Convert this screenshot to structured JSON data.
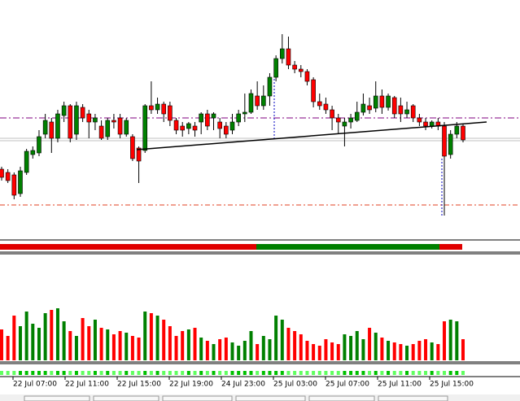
{
  "chart_data": {
    "type": "candlestick",
    "open": [
      92,
      88,
      85,
      62,
      88,
      110,
      112,
      135,
      150,
      130,
      158,
      170,
      135,
      168,
      160,
      150,
      145,
      132,
      152,
      155,
      135,
      132,
      118,
      115,
      170,
      165,
      172,
      170,
      152,
      145,
      142,
      145,
      150,
      160,
      155,
      150,
      145,
      140,
      150,
      160,
      162,
      182,
      170,
      182,
      205,
      228,
      240,
      220,
      215,
      212,
      202,
      175,
      172,
      165,
      155,
      145,
      150,
      152,
      162,
      170,
      167,
      182,
      168,
      180,
      170,
      160,
      170,
      155,
      150,
      145,
      150,
      145,
      110,
      135,
      145
    ],
    "close": [
      82,
      78,
      60,
      90,
      114,
      115,
      132,
      152,
      130,
      160,
      170,
      130,
      170,
      155,
      150,
      155,
      130,
      152,
      150,
      135,
      152,
      105,
      102,
      170,
      165,
      172,
      160,
      152,
      140,
      140,
      148,
      140,
      160,
      145,
      160,
      142,
      135,
      150,
      160,
      162,
      185,
      170,
      182,
      205,
      228,
      240,
      220,
      215,
      212,
      200,
      175,
      170,
      165,
      155,
      150,
      150,
      155,
      162,
      172,
      165,
      182,
      168,
      182,
      160,
      160,
      165,
      155,
      150,
      145,
      150,
      145,
      108,
      135,
      145,
      128
    ],
    "high": [
      95,
      92,
      88,
      95,
      117,
      120,
      140,
      160,
      155,
      165,
      175,
      172,
      175,
      172,
      165,
      160,
      152,
      155,
      160,
      160,
      155,
      135,
      120,
      172,
      200,
      180,
      175,
      175,
      155,
      150,
      150,
      150,
      162,
      165,
      162,
      155,
      150,
      160,
      165,
      185,
      190,
      200,
      195,
      210,
      232,
      258,
      255,
      225,
      220,
      215,
      205,
      185,
      180,
      170,
      160,
      155,
      160,
      175,
      185,
      180,
      200,
      190,
      185,
      182,
      180,
      175,
      172,
      160,
      155,
      152,
      155,
      150,
      140,
      150,
      148
    ],
    "low": [
      78,
      75,
      55,
      58,
      85,
      105,
      108,
      130,
      112,
      125,
      150,
      125,
      128,
      150,
      130,
      140,
      128,
      128,
      142,
      130,
      132,
      102,
      75,
      112,
      160,
      160,
      150,
      145,
      135,
      132,
      135,
      132,
      135,
      140,
      140,
      130,
      130,
      135,
      145,
      150,
      160,
      165,
      165,
      170,
      200,
      222,
      215,
      210,
      205,
      195,
      168,
      165,
      160,
      140,
      135,
      120,
      142,
      150,
      158,
      160,
      162,
      160,
      164,
      155,
      150,
      155,
      150,
      145,
      140,
      142,
      140,
      35,
      105,
      130,
      125
    ],
    "volume": [
      38,
      30,
      55,
      42,
      60,
      45,
      40,
      58,
      62,
      64,
      48,
      36,
      30,
      52,
      42,
      50,
      40,
      38,
      32,
      36,
      34,
      30,
      28,
      60,
      58,
      55,
      50,
      42,
      30,
      36,
      38,
      40,
      28,
      24,
      20,
      26,
      28,
      22,
      18,
      24,
      36,
      20,
      30,
      26,
      55,
      50,
      40,
      36,
      32,
      24,
      20,
      18,
      26,
      22,
      20,
      32,
      30,
      36,
      26,
      40,
      34,
      28,
      24,
      22,
      20,
      18,
      20,
      24,
      26,
      22,
      20,
      48,
      50,
      48,
      26
    ],
    "ylim": [
      10,
      300
    ],
    "volume_ylim": [
      0,
      70
    ],
    "up_color": "#008000",
    "down_color": "#ff0000",
    "xticks": [
      "22 Jul 07:00",
      "22 Jul 11:00",
      "22 Jul 15:00",
      "22 Jul 19:00",
      "24 Jul 23:00",
      "25 Jul 03:00",
      "25 Jul 07:00",
      "25 Jul 11:00",
      "25 Jul 15:00"
    ]
  }
}
